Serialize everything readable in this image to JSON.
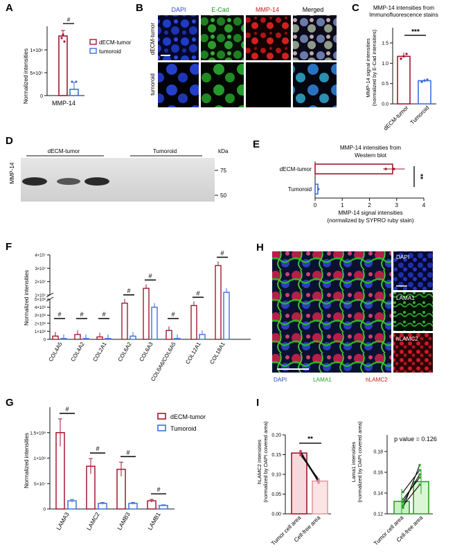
{
  "colors": {
    "dECM": "#a3162f",
    "tumoroid": "#3a6fd8",
    "green": "#2aa02a",
    "sig": "#111111"
  },
  "panels": {
    "A": {
      "letter": "A",
      "ylabel": "Normalized intensities",
      "xlabel": "MMP-14",
      "sig": "#",
      "yticks": [
        "0",
        "5×10⁵",
        "1×10⁶"
      ],
      "legend": [
        "dECM-tumor",
        "tumoroid"
      ]
    },
    "B": {
      "letter": "B",
      "cols": [
        "DAPI",
        "E-Cad",
        "MMP-14",
        "Merged"
      ],
      "rows": [
        "dECM-tumor",
        "tumoroid"
      ]
    },
    "C": {
      "letter": "C",
      "title": [
        "MMP-14 intensities from",
        "Immunofluorescence stains"
      ],
      "ylabel": [
        "MMP-14 signal intensities",
        "(normalized by E-Cad intensities)"
      ],
      "yticks": [
        "0.0",
        "0.5",
        "1.0",
        "1.5"
      ],
      "cats": [
        "dECM-tumor",
        "Tumoroid"
      ],
      "sig": "***"
    },
    "D": {
      "letter": "D",
      "groups": [
        "dECM-tumor",
        "Tumoroid"
      ],
      "kda": "kDa",
      "markers": [
        "75",
        "50"
      ],
      "ylabel": "MMP-14"
    },
    "E": {
      "letter": "E",
      "title": [
        "MMP-14 intensities from",
        "Western blot"
      ],
      "cats": [
        "dECM-tumor",
        "Tumoroid"
      ],
      "xticks": [
        "0",
        "1",
        "2",
        "3",
        "4"
      ],
      "xlabel": [
        "MMP-14 signal intensities",
        "(normalized by SYPRO ruby stain)"
      ],
      "sig": "**"
    },
    "F": {
      "letter": "F",
      "ylabel": "Normalized intensities",
      "yticks_top": [
        "1×10⁷",
        "2×10⁷",
        "3×10⁷",
        "4×10⁷"
      ],
      "yticks_bottom": [
        "0",
        "1×10⁶",
        "2×10⁶",
        "3×10⁶",
        "4×10⁶",
        "5×10⁶"
      ],
      "cats": [
        "COL4A5",
        "COL4A2",
        "COL2A1",
        "COL6A2",
        "COL6A3",
        "COL6A6/COL6A5",
        "COL12A1",
        "COL18A1"
      ],
      "sig": "#"
    },
    "G": {
      "letter": "G",
      "ylabel": "Normalized intensities",
      "yticks": [
        "0",
        "5×10⁷",
        "1×10⁸",
        "1.5×10⁸"
      ],
      "cats": [
        "LAMA3",
        "LAMC2",
        "LAMB3",
        "LAMB1"
      ],
      "legend": [
        "dECM-tumor",
        "Tumoroid"
      ],
      "sig": "#"
    },
    "H": {
      "letter": "H",
      "legend": [
        "DAPI",
        "LAMA1",
        "hLAMC2"
      ],
      "insets": [
        "DAPI",
        "LAMA1",
        "hLAMC2"
      ]
    },
    "I": {
      "letter": "I",
      "left": {
        "ylabel": [
          "hLAMC2 intensities",
          "(normalized by DAPI covered area)"
        ],
        "yticks": [
          "0.00",
          "0.05",
          "0.10",
          "0.15",
          "0.20"
        ],
        "cats": [
          "Tumor cell area",
          "Cell-free area"
        ],
        "sig": "**"
      },
      "right": {
        "ylabel": [
          "Lama1 intensities",
          "(normalized by DAPI covered area)"
        ],
        "yticks": [
          "0.12",
          "0.14",
          "0.16",
          "0.18"
        ],
        "cats": [
          "Tumor cell area",
          "Cell-free area"
        ],
        "pvalue": "p value = 0.126"
      }
    }
  },
  "chart_data": [
    {
      "panel": "A",
      "type": "bar",
      "categories": [
        "MMP-14"
      ],
      "series": [
        {
          "name": "dECM-tumor",
          "values": [
            1300000
          ]
        },
        {
          "name": "tumoroid",
          "values": [
            130000
          ]
        }
      ],
      "ylim": [
        0,
        1500000
      ]
    },
    {
      "panel": "C",
      "type": "bar",
      "categories": [
        "dECM-tumor",
        "Tumoroid"
      ],
      "values": [
        1.17,
        0.57
      ],
      "ylim": [
        0,
        1.5
      ]
    },
    {
      "panel": "E",
      "type": "bar",
      "categories": [
        "dECM-tumor",
        "Tumoroid"
      ],
      "values": [
        2.85,
        0.1
      ],
      "xlim": [
        0,
        4
      ]
    },
    {
      "panel": "F",
      "type": "bar",
      "categories": [
        "COL4A5",
        "COL4A2",
        "COL2A1",
        "COL6A2",
        "COL6A3",
        "COL6A6/COL6A5",
        "COL12A1",
        "COL18A1"
      ],
      "series": [
        {
          "name": "dECM-tumor",
          "values": [
            400000,
            600000,
            300000,
            4500000,
            15000000,
            1100000,
            4200000,
            32000000
          ]
        },
        {
          "name": "Tumoroid",
          "values": [
            100000,
            100000,
            100000,
            400000,
            4000000,
            100000,
            600000,
            12000000
          ]
        }
      ],
      "yaxis": "broken"
    },
    {
      "panel": "G",
      "type": "bar",
      "categories": [
        "LAMA3",
        "LAMC2",
        "LAMB3",
        "LAMB1"
      ],
      "series": [
        {
          "name": "dECM-tumor",
          "values": [
            150000000,
            84000000,
            78000000,
            16000000
          ]
        },
        {
          "name": "Tumoroid",
          "values": [
            16000000,
            11000000,
            11000000,
            7000000
          ]
        }
      ],
      "ylim": [
        0,
        200000000
      ]
    },
    {
      "panel": "I-left",
      "type": "bar",
      "categories": [
        "Tumor cell area",
        "Cell-free area"
      ],
      "values": [
        0.154,
        0.083
      ],
      "ylim": [
        0,
        0.2
      ]
    },
    {
      "panel": "I-right",
      "type": "bar",
      "categories": [
        "Tumor cell area",
        "Cell-free area"
      ],
      "values": [
        0.132,
        0.151
      ],
      "ylim": [
        0.12,
        0.18
      ]
    }
  ]
}
